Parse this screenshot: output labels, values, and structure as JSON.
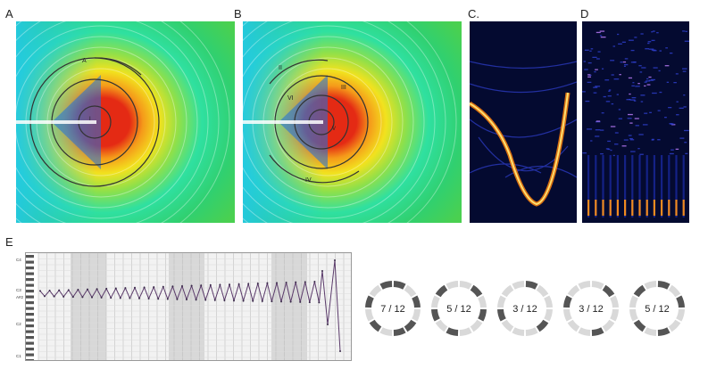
{
  "figure": {
    "panel_labels": [
      "A",
      "B",
      "C.",
      "D",
      "E"
    ],
    "panel_a": {
      "ring_labels": [
        "A",
        "I",
        "II"
      ],
      "colormap": [
        "#0a1a8c",
        "#1c6fe0",
        "#22c8e8",
        "#2fe0a0",
        "#8fe04a",
        "#f2e21e",
        "#f59a1a",
        "#e42a14"
      ]
    },
    "panel_b": {
      "ring_labels": [
        "II",
        "III",
        "IV",
        "VI",
        "V",
        "I"
      ]
    },
    "panel_e": {
      "piano_keys": [
        "C4",
        "C3",
        "A#2",
        "C2",
        "C1"
      ],
      "pitch_values": [
        0.42,
        0.52,
        0.48,
        0.55,
        0.45,
        0.6,
        0.4,
        0.62,
        0.38,
        0.65,
        0.35,
        0.7,
        0.3,
        0.75,
        0.25,
        0.85,
        0.15,
        0.95,
        0.05
      ],
      "rings": [
        {
          "label": "7 / 12",
          "active": [
            0,
            2,
            4,
            5,
            7,
            9,
            11
          ]
        },
        {
          "label": "5 / 12",
          "active": [
            1,
            3,
            6,
            8,
            10
          ]
        },
        {
          "label": "3 / 12",
          "active": [
            0,
            4,
            8
          ]
        },
        {
          "label": "3 / 12",
          "active": [
            1,
            5,
            9
          ]
        },
        {
          "label": "5 / 12",
          "active": [
            0,
            2,
            5,
            7,
            10
          ]
        }
      ],
      "ring_colors": {
        "active": "#555555",
        "inactive": "#d9d9d9"
      }
    }
  }
}
